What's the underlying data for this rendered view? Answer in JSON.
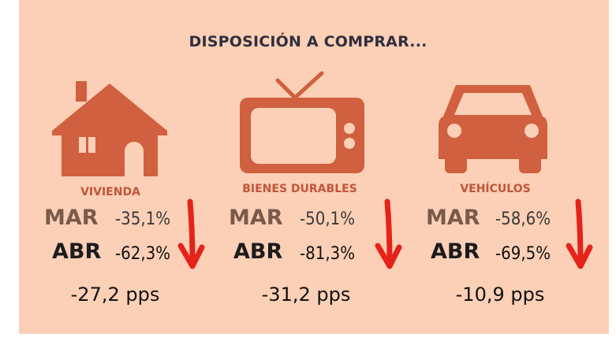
{
  "title": "DISPOSICIÓN A COMPRAR...",
  "colors": {
    "background": "#fbd0b6",
    "icon": "#d0603f",
    "label": "#c0553a",
    "arrow": "#e5231b"
  },
  "items": [
    {
      "icon": "house-icon",
      "label": "VIVIENDA",
      "mar_key": "MAR",
      "mar_value": "-35,1%",
      "abr_key": "ABR",
      "abr_value": "-62,3%",
      "change": "-27,2 pps"
    },
    {
      "icon": "tv-icon",
      "label": "BIENES DURABLES",
      "mar_key": "MAR",
      "mar_value": "-50,1%",
      "abr_key": "ABR",
      "abr_value": "-81,3%",
      "change": "-31,2 pps"
    },
    {
      "icon": "car-icon",
      "label": "VEHÍCULOS",
      "mar_key": "MAR",
      "mar_value": "-58,6%",
      "abr_key": "ABR",
      "abr_value": "-69,5%",
      "change": "-10,9 pps"
    }
  ]
}
